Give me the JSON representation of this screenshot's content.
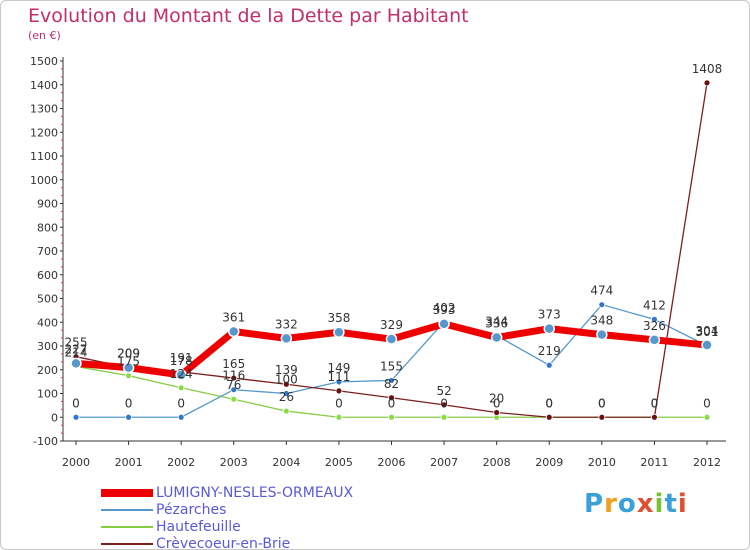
{
  "header": {
    "title": "Evolution du Montant de la Dette par Habitant",
    "subtitle": "(en €)"
  },
  "logo": {
    "text": "Proxiti",
    "colors": [
      "#3aa0d8",
      "#f0a020",
      "#3aa0d8",
      "#e05030",
      "#7ac030",
      "#3aa0d8",
      "#e05030"
    ]
  },
  "chart_data": {
    "type": "line",
    "title": "Evolution du Montant de la Dette par Habitant",
    "ylabel": "(en €)",
    "xlabel": "",
    "x": [
      "2000",
      "2001",
      "2002",
      "2003",
      "2004",
      "2005",
      "2006",
      "2007",
      "2008",
      "2009",
      "2010",
      "2011",
      "2012"
    ],
    "ylim": [
      -100,
      1500
    ],
    "yticks": [
      -100,
      0,
      100,
      200,
      300,
      400,
      500,
      600,
      700,
      800,
      900,
      1000,
      1100,
      1200,
      1300,
      1400,
      1500
    ],
    "grid": false,
    "legend": "bottom-left",
    "series": [
      {
        "name": "LUMIGNY-NESLES-ORMEAUX",
        "color": "#ee0000",
        "values": [
          227,
          209,
          178,
          361,
          332,
          358,
          329,
          393,
          336,
          373,
          348,
          326,
          304
        ],
        "labels": [
          "227",
          "209",
          "178",
          "361",
          "332",
          "358",
          "329",
          "393",
          "336",
          "373",
          "348",
          "326",
          "304"
        ]
      },
      {
        "name": "Pézarches",
        "color": "#5599cc",
        "values": [
          0,
          0,
          0,
          116,
          100,
          149,
          155,
          402,
          344,
          219,
          474,
          412,
          301
        ],
        "labels": [
          "0",
          "0",
          "0",
          "116",
          "100",
          "149",
          "155",
          "402",
          "344",
          "219",
          "474",
          "412",
          "301"
        ]
      },
      {
        "name": "Hautefeuille",
        "color": "#88cc44",
        "values": [
          214,
          175,
          124,
          76,
          26,
          0,
          0,
          0,
          0,
          0,
          0,
          0,
          0
        ],
        "labels": [
          "214",
          "175",
          "124",
          "76",
          "26",
          "0",
          "0",
          "0",
          "0",
          "0",
          "0",
          "0",
          "0"
        ]
      },
      {
        "name": "Crèvecoeur-en-Brie",
        "color": "#7a2020",
        "values": [
          255,
          209,
          191,
          165,
          139,
          111,
          82,
          52,
          20,
          0,
          0,
          0,
          1408
        ],
        "labels": [
          "255",
          "209",
          "191",
          "165",
          "139",
          "111",
          "82",
          "52",
          "20",
          "0",
          "0",
          "0",
          "1408"
        ]
      }
    ]
  }
}
